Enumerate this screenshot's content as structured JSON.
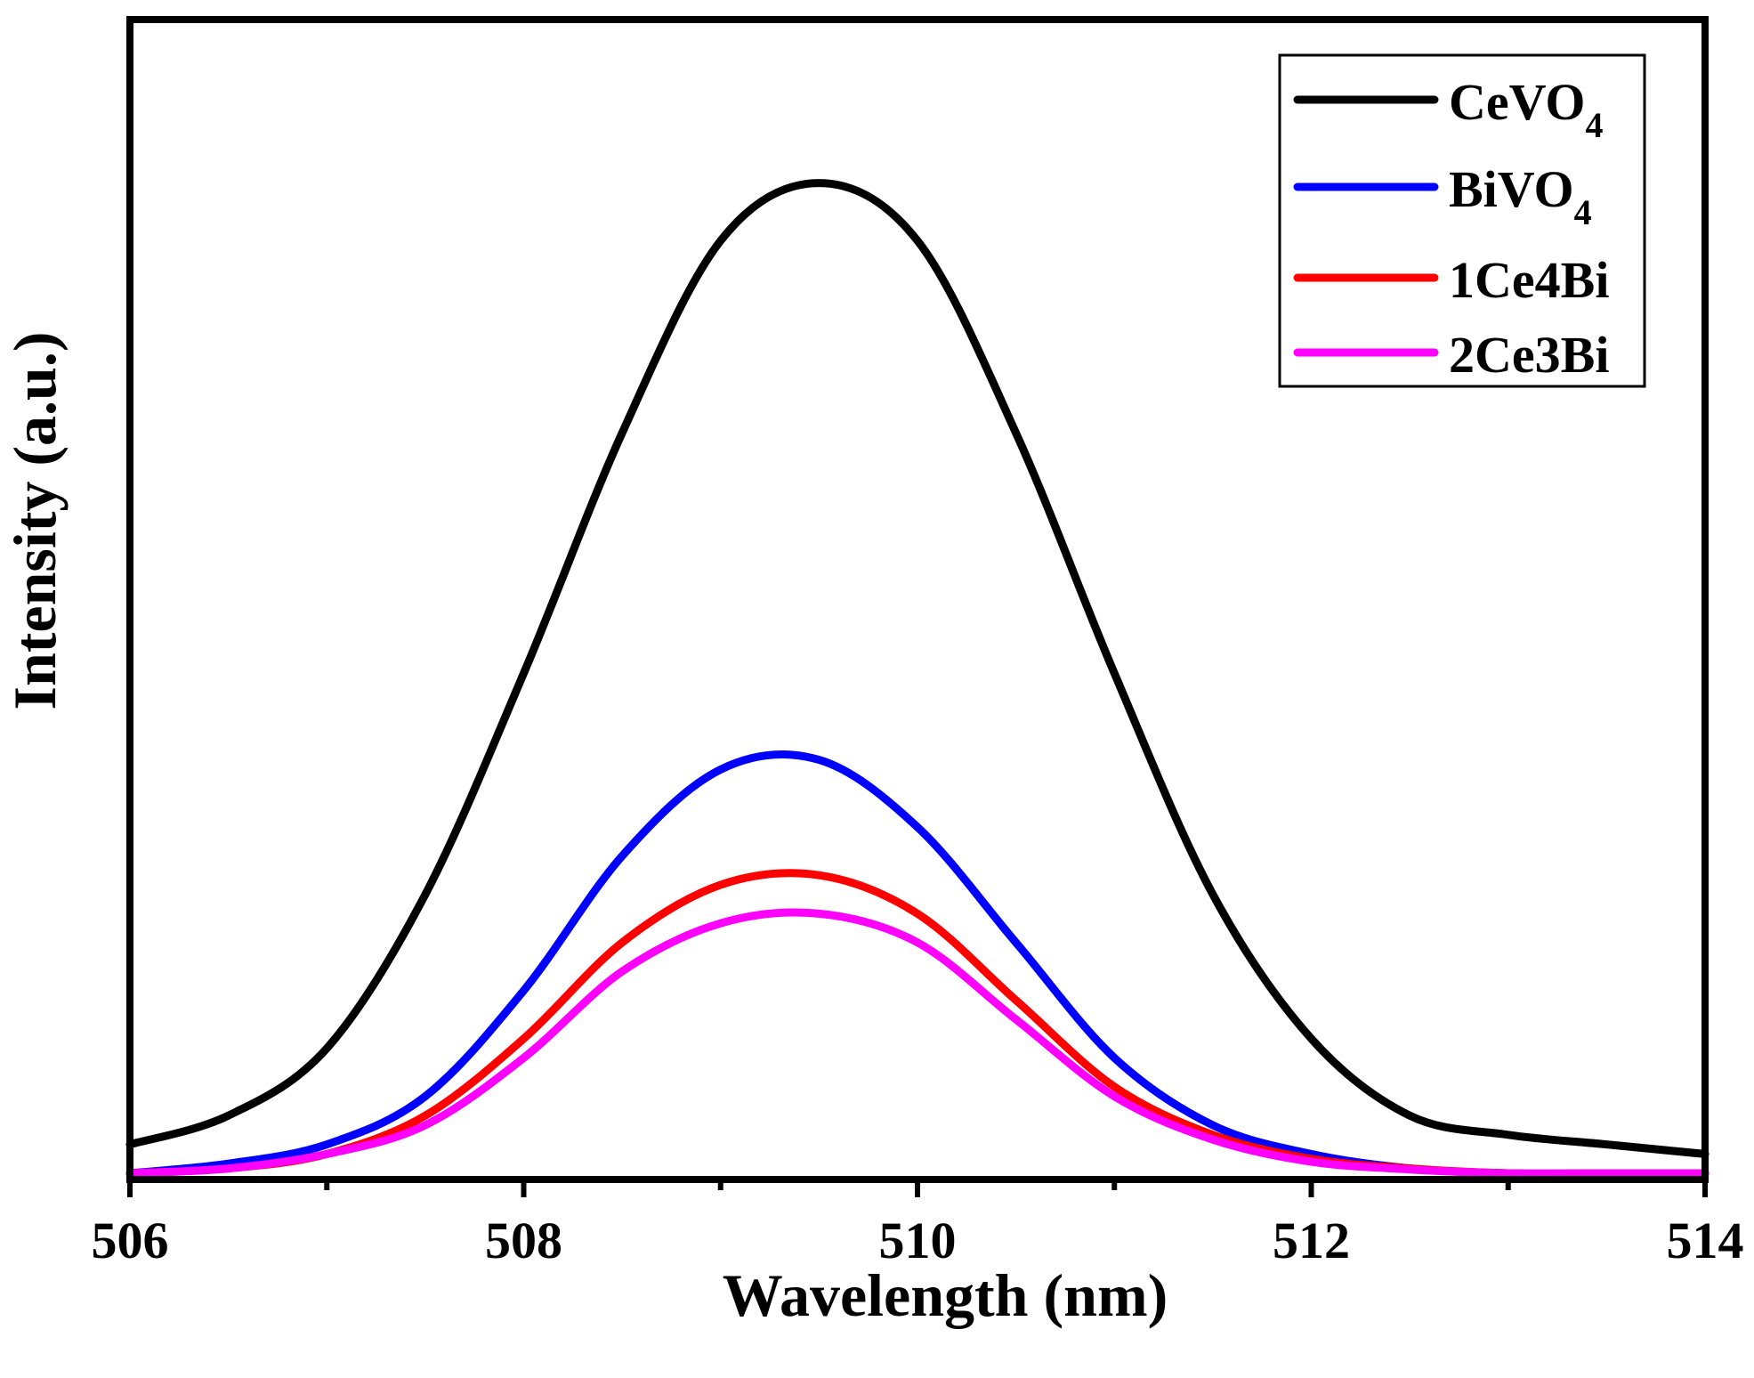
{
  "chart_data": {
    "type": "line",
    "title": "",
    "xlabel": "Wavelength (nm)",
    "ylabel": "Intensity (a.u.)",
    "xlim": [
      506,
      514
    ],
    "ylim": [
      0,
      1.2
    ],
    "x_ticks": [
      "506",
      "508",
      "510",
      "512",
      "514"
    ],
    "y_ticks_visible": false,
    "grid": false,
    "legend_position": "top-right",
    "x": [
      506.0,
      506.5,
      507.0,
      507.5,
      508.0,
      508.5,
      509.0,
      509.5,
      510.0,
      510.5,
      511.0,
      511.5,
      512.0,
      512.5,
      513.0,
      513.5,
      514.0
    ],
    "series": [
      {
        "name": "CeVO",
        "subscript": "4",
        "color": "#000000",
        "values": [
          0.03,
          0.06,
          0.13,
          0.29,
          0.52,
          0.77,
          0.97,
          1.03,
          0.97,
          0.77,
          0.52,
          0.29,
          0.14,
          0.06,
          0.04,
          0.03,
          0.02
        ]
      },
      {
        "name": "BiVO",
        "subscript": "4",
        "color": "#0000ff",
        "values": [
          0.0,
          0.01,
          0.03,
          0.08,
          0.19,
          0.33,
          0.42,
          0.43,
          0.36,
          0.24,
          0.12,
          0.05,
          0.02,
          0.005,
          0.0,
          0.0,
          0.0
        ]
      },
      {
        "name": "1Ce4Bi",
        "subscript": "",
        "color": "#ff0000",
        "values": [
          0.0,
          0.005,
          0.02,
          0.06,
          0.14,
          0.24,
          0.3,
          0.31,
          0.27,
          0.18,
          0.09,
          0.04,
          0.015,
          0.005,
          0.0,
          0.0,
          0.0
        ]
      },
      {
        "name": "2Ce3Bi",
        "subscript": "",
        "color": "#ff00ff",
        "values": [
          0.0,
          0.005,
          0.02,
          0.05,
          0.12,
          0.21,
          0.26,
          0.27,
          0.24,
          0.16,
          0.08,
          0.035,
          0.012,
          0.004,
          0.0,
          0.0,
          0.0
        ]
      }
    ]
  }
}
